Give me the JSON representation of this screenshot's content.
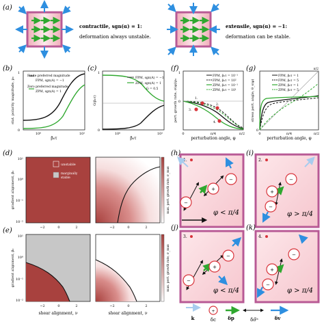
{
  "panels": {
    "a": {
      "label": "(a)",
      "contractile_text": "contractile, sgn(α) = 1:",
      "contractile_sub": "deformation always unstable.",
      "extensile_text": "extensile, sgn(α) = −1:",
      "extensile_sub": "deformation can be stable."
    },
    "b": {
      "label": "(b)",
      "ylabel": "stat. polarity magnitude, p₀",
      "xlabel": "β₀τ",
      "legend": [
        "Finite preferred magnitude",
        "FPM, sgn(A) = −1",
        "Zero preferred magnitude",
        "ZPM, sgn(A) = 1"
      ],
      "yticks": [
        "1",
        "0"
      ],
      "xticks": [
        "10⁰",
        "10²"
      ]
    },
    "c": {
      "label": "(c)",
      "ylabel": "G(β₀τ)",
      "xlabel": "β₀τ",
      "legend": [
        "FPM, sgn(A) = −1",
        "ZPM, sgn(A) = 1"
      ],
      "annotation": "G = 0.5",
      "yticks": [
        "1",
        "0"
      ],
      "xticks": [
        "10⁰",
        "10²"
      ]
    },
    "f": {
      "label": "(f)",
      "ylabel": "pert. growth rate, σ(φ)/ρ₀",
      "xlabel": "perturbation angle, φ",
      "legend": [
        "FPM, β₀τ = 10⁻¹",
        "FPM, β₀τ = 10²",
        "ZPM, β₀τ = 10⁻¹",
        "ZPM, β₀τ = 10¹"
      ],
      "yticks": [
        "1",
        "0"
      ],
      "xticks": [
        "0",
        "π/4",
        "π/2"
      ],
      "points": [
        "1.",
        "2.",
        "3.",
        "4."
      ]
    },
    "g": {
      "label": "(g)",
      "ylabel": "stress pert. angle, θ_s(φ)",
      "xlabel": "perturbation angle, φ",
      "legend": [
        "FPM, β₀τ = 1",
        "FPM, β₀τ = 5",
        "ZPM, β₀τ = 1",
        "ZPM, β₀τ = 5"
      ],
      "yticks": [
        "π/2",
        "0"
      ],
      "xticks": [
        "0",
        "π/4",
        "π/2"
      ]
    },
    "d": {
      "label": "(d)",
      "ylabel": "gradient alignment, β₀",
      "ylabel_right": "max. pert. growth rate, σ_max",
      "legend": [
        "unstable",
        "marginally stable"
      ],
      "yticks": [
        "10¹",
        "10⁰",
        "10⁻¹",
        "10⁻²"
      ],
      "xticks": [
        "−2",
        "0",
        "2"
      ]
    },
    "e": {
      "label": "(e)",
      "ylabel": "gradient alignment, β₀",
      "ylabel_right": "max. pert. growth rate, σ_max",
      "xlabel": "shear alignment, ν",
      "yticks": [
        "10¹",
        "10⁰",
        "10⁻¹",
        "10⁻²"
      ],
      "xticks": [
        "−2",
        "0",
        "2"
      ]
    },
    "h": {
      "label": "(h)",
      "num": "1.",
      "cond": "φ < π/4"
    },
    "i": {
      "label": "(i)",
      "num": "2.",
      "cond": "φ > π/4"
    },
    "j": {
      "label": "(j)",
      "num": "3.",
      "cond": "φ < π/4"
    },
    "k": {
      "label": "(k)",
      "num": "4.",
      "cond": "φ > π/4"
    },
    "legend_bottom": [
      "k",
      "δc",
      "δp",
      "δσ̃ᵃ",
      "δv"
    ]
  },
  "colors": {
    "frame": "#b85a95",
    "green": "#2fa82f",
    "darkgreen": "#0e5a0e",
    "blue": "#2e8fe0",
    "unstable": "#a8413e",
    "gray": "#c7c7c7",
    "pinkfill": "#f3c7cf"
  },
  "axes": {
    "x": "shear alignment, ν"
  }
}
